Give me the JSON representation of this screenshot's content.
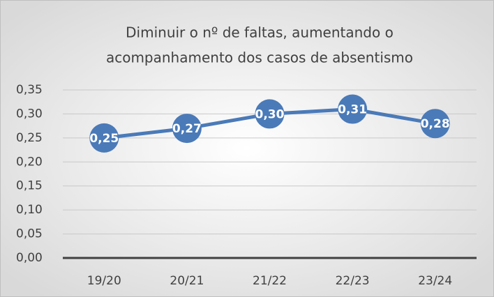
{
  "chart_data": {
    "type": "line",
    "title": [
      "Diminuir o nº de faltas, aumentando o",
      "acompanhamento dos casos de absentismo"
    ],
    "categories": [
      "19/20",
      "20/21",
      "21/22",
      "22/23",
      "23/24"
    ],
    "series": [
      {
        "color": "#4a7ab8",
        "values": [
          0.25,
          0.27,
          0.3,
          0.31,
          0.28
        ],
        "value_labels": [
          "0,25",
          "0,27",
          "0,30",
          "0,31",
          "0,28"
        ]
      }
    ],
    "ylim": [
      0,
      0.35
    ],
    "yticks": [
      {
        "value": 0,
        "label": "0,00"
      },
      {
        "value": 0.05,
        "label": "0,05"
      },
      {
        "value": 0.1,
        "label": "0,10"
      },
      {
        "value": 0.15,
        "label": "0,15"
      },
      {
        "value": 0.2,
        "label": "0,20"
      },
      {
        "value": 0.25,
        "label": "0,25"
      },
      {
        "value": 0.3,
        "label": "0,30"
      },
      {
        "value": 0.35,
        "label": "0,35"
      }
    ],
    "grid": true
  }
}
